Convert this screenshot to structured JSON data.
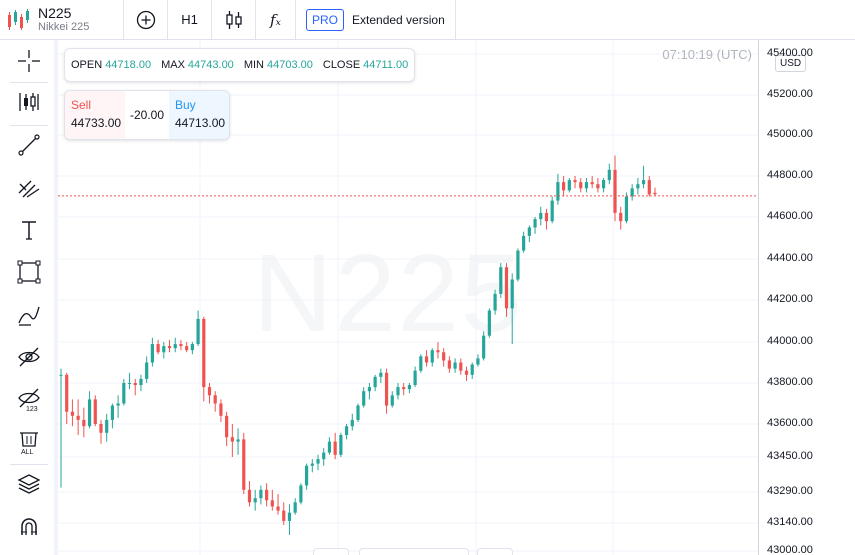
{
  "header": {
    "symbol": "N225",
    "description": "Nikkei 225",
    "interval": "H1",
    "indicators_glyph": "fₓ",
    "pro_badge": "PRO",
    "extended_label": "Extended version"
  },
  "legend": {
    "open_label": "OPEN",
    "open_value": "44718.00",
    "max_label": "MAX",
    "max_value": "44743.00",
    "min_label": "MIN",
    "min_value": "44703.00",
    "close_label": "CLOSE",
    "close_value": "44711.00"
  },
  "trade": {
    "sell_label": "Sell",
    "sell_value": "44733.00",
    "spread": "-20.00",
    "buy_label": "Buy",
    "buy_value": "44713.00"
  },
  "chart": {
    "clock": "07:10:19 (UTC)",
    "currency": "USD",
    "watermark": "N225",
    "up_color": "#26a69a",
    "down_color": "#ef5350",
    "current_price_line": 44703,
    "price_labels": [
      "45400.00",
      "45200.00",
      "45000.00",
      "44800.00",
      "44600.00",
      "44400.00",
      "44200.00",
      "44000.00",
      "43800.00",
      "43600.00",
      "43450.00",
      "43290.00",
      "43140.00",
      "43000.00"
    ]
  },
  "left_tools": [
    "crosshair-icon",
    "candles-icon",
    "trend-line-icon",
    "fib-icon",
    "text-icon",
    "rectangle-icon",
    "brush-icon",
    "hide-drawings-icon",
    "hide-indicators-icon",
    "remove-all-icon",
    "layers-icon",
    "magnet-icon"
  ],
  "chart_data": {
    "type": "candlestick",
    "y_range": [
      43000,
      45500
    ],
    "candles": [
      [
        43840,
        43870,
        43310,
        43840
      ],
      [
        43840,
        43850,
        43600,
        43660
      ],
      [
        43660,
        43720,
        43590,
        43640
      ],
      [
        43640,
        43720,
        43550,
        43620
      ],
      [
        43620,
        43680,
        43540,
        43590
      ],
      [
        43590,
        43760,
        43580,
        43720
      ],
      [
        43720,
        43740,
        43590,
        43600
      ],
      [
        43600,
        43620,
        43510,
        43560
      ],
      [
        43560,
        43650,
        43520,
        43620
      ],
      [
        43620,
        43700,
        43580,
        43690
      ],
      [
        43690,
        43740,
        43630,
        43700
      ],
      [
        43700,
        43820,
        43690,
        43800
      ],
      [
        43800,
        43850,
        43770,
        43800
      ],
      [
        43800,
        43820,
        43740,
        43790
      ],
      [
        43790,
        43840,
        43760,
        43820
      ],
      [
        43820,
        43930,
        43800,
        43900
      ],
      [
        43900,
        44020,
        43880,
        43990
      ],
      [
        43990,
        44010,
        43940,
        43950
      ],
      [
        43950,
        44000,
        43920,
        43980
      ],
      [
        43980,
        44010,
        43950,
        43970
      ],
      [
        43970,
        44020,
        43950,
        43990
      ],
      [
        43990,
        44010,
        43960,
        43980
      ],
      [
        43980,
        44000,
        43950,
        43960
      ],
      [
        43960,
        44000,
        43940,
        43990
      ],
      [
        43990,
        44150,
        43980,
        44110
      ],
      [
        44110,
        44120,
        43710,
        43780
      ],
      [
        43780,
        43800,
        43700,
        43740
      ],
      [
        43740,
        43760,
        43660,
        43700
      ],
      [
        43700,
        43720,
        43610,
        43640
      ],
      [
        43640,
        43660,
        43500,
        43540
      ],
      [
        43540,
        43600,
        43450,
        43520
      ],
      [
        43520,
        43580,
        43460,
        43530
      ],
      [
        43530,
        43560,
        43280,
        43300
      ],
      [
        43300,
        43340,
        43220,
        43240
      ],
      [
        43240,
        43300,
        43200,
        43260
      ],
      [
        43260,
        43320,
        43230,
        43300
      ],
      [
        43300,
        43330,
        43220,
        43250
      ],
      [
        43250,
        43300,
        43200,
        43220
      ],
      [
        43220,
        43280,
        43180,
        43200
      ],
      [
        43200,
        43240,
        43130,
        43150
      ],
      [
        43150,
        43230,
        43080,
        43190
      ],
      [
        43190,
        43260,
        43180,
        43240
      ],
      [
        43240,
        43330,
        43230,
        43320
      ],
      [
        43320,
        43420,
        43300,
        43410
      ],
      [
        43410,
        43440,
        43380,
        43420
      ],
      [
        43420,
        43460,
        43390,
        43440
      ],
      [
        43440,
        43490,
        43410,
        43470
      ],
      [
        43470,
        43540,
        43460,
        43520
      ],
      [
        43520,
        43560,
        43440,
        43460
      ],
      [
        43460,
        43560,
        43450,
        43550
      ],
      [
        43550,
        43600,
        43530,
        43590
      ],
      [
        43590,
        43650,
        43570,
        43620
      ],
      [
        43620,
        43700,
        43610,
        43690
      ],
      [
        43690,
        43780,
        43680,
        43760
      ],
      [
        43760,
        43800,
        43720,
        43780
      ],
      [
        43780,
        43840,
        43760,
        43830
      ],
      [
        43830,
        43870,
        43800,
        43850
      ],
      [
        43850,
        43870,
        43650,
        43690
      ],
      [
        43690,
        43760,
        43680,
        43740
      ],
      [
        43740,
        43800,
        43720,
        43780
      ],
      [
        43780,
        43800,
        43740,
        43770
      ],
      [
        43770,
        43800,
        43750,
        43790
      ],
      [
        43790,
        43880,
        43780,
        43860
      ],
      [
        43860,
        43940,
        43850,
        43930
      ],
      [
        43930,
        43960,
        43880,
        43900
      ],
      [
        43900,
        43970,
        43880,
        43960
      ],
      [
        43960,
        44000,
        43920,
        43950
      ],
      [
        43950,
        43970,
        43880,
        43910
      ],
      [
        43910,
        43930,
        43850,
        43870
      ],
      [
        43870,
        43920,
        43850,
        43900
      ],
      [
        43900,
        43920,
        43840,
        43860
      ],
      [
        43860,
        43880,
        43810,
        43840
      ],
      [
        43840,
        43900,
        43820,
        43890
      ],
      [
        43890,
        43940,
        43880,
        43920
      ],
      [
        43920,
        44050,
        43910,
        44030
      ],
      [
        44030,
        44160,
        44020,
        44150
      ],
      [
        44150,
        44250,
        44130,
        44230
      ],
      [
        44230,
        44380,
        44210,
        44360
      ],
      [
        44360,
        44380,
        44120,
        44160
      ],
      [
        44160,
        44330,
        43990,
        44300
      ],
      [
        44300,
        44450,
        44290,
        44440
      ],
      [
        44440,
        44530,
        44430,
        44510
      ],
      [
        44510,
        44560,
        44480,
        44550
      ],
      [
        44550,
        44600,
        44520,
        44590
      ],
      [
        44590,
        44650,
        44560,
        44620
      ],
      [
        44620,
        44640,
        44540,
        44580
      ],
      [
        44580,
        44700,
        44570,
        44680
      ],
      [
        44680,
        44810,
        44660,
        44770
      ],
      [
        44770,
        44800,
        44700,
        44730
      ],
      [
        44730,
        44790,
        44720,
        44780
      ],
      [
        44780,
        44800,
        44740,
        44770
      ],
      [
        44770,
        44790,
        44720,
        44740
      ],
      [
        44740,
        44790,
        44720,
        44770
      ],
      [
        44770,
        44800,
        44740,
        44760
      ],
      [
        44760,
        44790,
        44720,
        44740
      ],
      [
        44740,
        44790,
        44720,
        44780
      ],
      [
        44780,
        44860,
        44760,
        44830
      ],
      [
        44830,
        44900,
        44580,
        44620
      ],
      [
        44620,
        44650,
        44540,
        44580
      ],
      [
        44580,
        44720,
        44570,
        44700
      ],
      [
        44700,
        44760,
        44680,
        44740
      ],
      [
        44740,
        44790,
        44710,
        44760
      ],
      [
        44760,
        44850,
        44740,
        44780
      ],
      [
        44780,
        44800,
        44700,
        44710
      ],
      [
        44718,
        44743,
        44703,
        44711
      ]
    ]
  }
}
